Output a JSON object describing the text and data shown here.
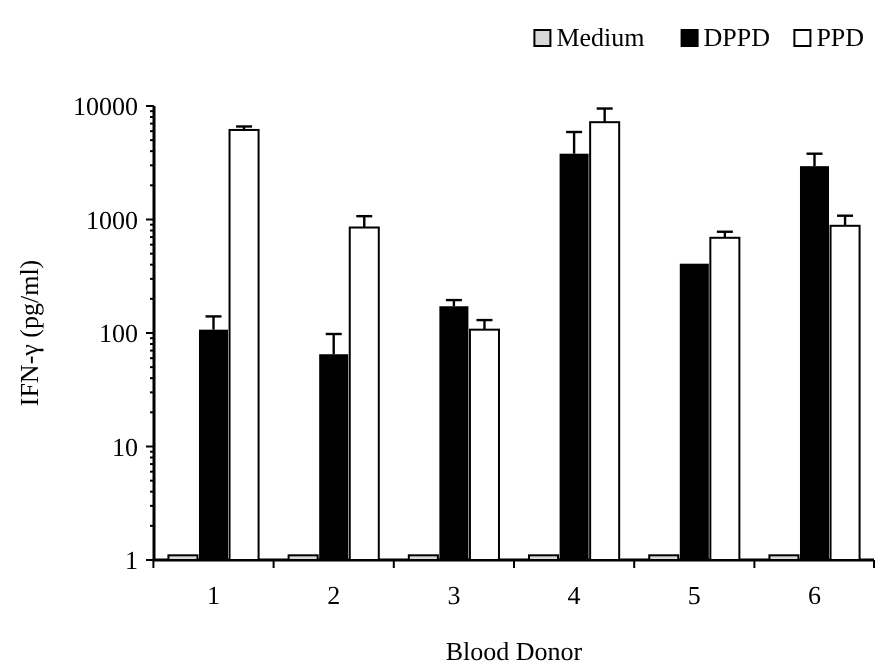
{
  "chart_data": {
    "type": "bar",
    "xlabel": "Blood Donor",
    "ylabel": "IFN-γ (pg/ml)",
    "categories": [
      "1",
      "2",
      "3",
      "4",
      "5",
      "6"
    ],
    "log": true,
    "ylim": [
      1,
      10000
    ],
    "yticks": [
      1,
      10,
      100,
      1000,
      10000
    ],
    "legend": "top right",
    "grid": false,
    "series": [
      {
        "name": "Medium",
        "color": "#d9d9d9",
        "values": [
          1.1,
          1.1,
          1.1,
          1.1,
          1.1,
          1.1
        ]
      },
      {
        "name": "DPPD",
        "color": "#000000",
        "values": [
          107,
          65,
          172,
          3800,
          408,
          2950
        ],
        "errors": [
          [
            107,
            140
          ],
          [
            65,
            98
          ],
          [
            172,
            195
          ],
          [
            3800,
            5900
          ],
          null,
          [
            2950,
            3800
          ]
        ]
      },
      {
        "name": "PPD",
        "color": "#ffffff",
        "values": [
          6150,
          850,
          107,
          7200,
          690,
          880
        ],
        "errors": [
          [
            6150,
            6600
          ],
          [
            850,
            1070
          ],
          [
            107,
            130
          ],
          [
            7200,
            9500
          ],
          [
            690,
            780
          ],
          [
            880,
            1080
          ]
        ]
      }
    ]
  }
}
